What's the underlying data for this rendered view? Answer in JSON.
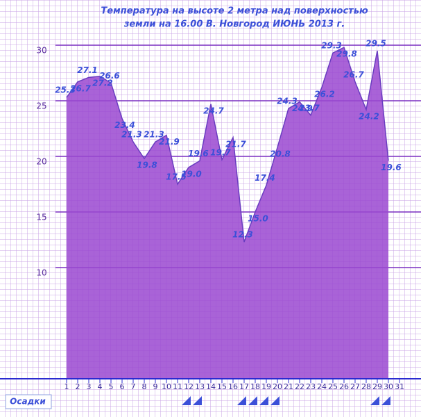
{
  "chart_data": {
    "type": "area",
    "title": "Температура  на  высоте  2  метра  над  поверхностью",
    "subtitle": "земли  на  16.00  В.  Новгород  ИЮНЬ  2013  г.",
    "x": [
      1,
      2,
      3,
      4,
      5,
      6,
      7,
      8,
      9,
      10,
      11,
      12,
      13,
      14,
      15,
      16,
      17,
      18,
      19,
      20,
      21,
      22,
      23,
      24,
      25,
      26,
      27,
      28,
      29,
      30
    ],
    "values": [
      25.3,
      26.7,
      27.1,
      27.2,
      26.6,
      23.4,
      21.3,
      19.8,
      21.3,
      21.9,
      17.5,
      19.0,
      19.6,
      24.7,
      19.7,
      21.7,
      12.3,
      15.0,
      17.4,
      20.8,
      24.3,
      24.9,
      23.7,
      26.2,
      29.3,
      29.8,
      26.7,
      24.2,
      29.5,
      19.6
    ],
    "value_labels": [
      "25.3",
      "26.7",
      "27.1",
      "27.2",
      "26.6",
      "23.4",
      "21.3",
      "19.8",
      "21.3",
      "21.9",
      "17.5",
      "19.0",
      "19.6",
      "24.7",
      "19.7",
      "21.7",
      "12.3",
      "15.0",
      "17.4",
      "20.8",
      "24.3",
      "24.9",
      "23.7",
      "26.2",
      "29.3",
      "29.8",
      "26.7",
      "24.2",
      "29.5",
      "19.6"
    ],
    "color": "#9a48d0",
    "xlim": [
      -5,
      32.94
    ],
    "xticks": [
      1,
      2,
      3,
      4,
      5,
      6,
      7,
      8,
      9,
      10,
      11,
      12,
      13,
      14,
      15,
      16,
      17,
      18,
      19,
      20,
      21,
      22,
      23,
      24,
      25,
      26,
      27,
      28,
      29,
      30,
      31
    ],
    "ylim": [
      0,
      34.06
    ],
    "yticks": [
      10,
      15,
      20,
      25,
      30
    ],
    "grid": true,
    "precipitation_label": "Осадки",
    "precipitation_days": [
      12,
      13,
      17,
      18,
      19,
      20,
      29,
      30
    ]
  }
}
